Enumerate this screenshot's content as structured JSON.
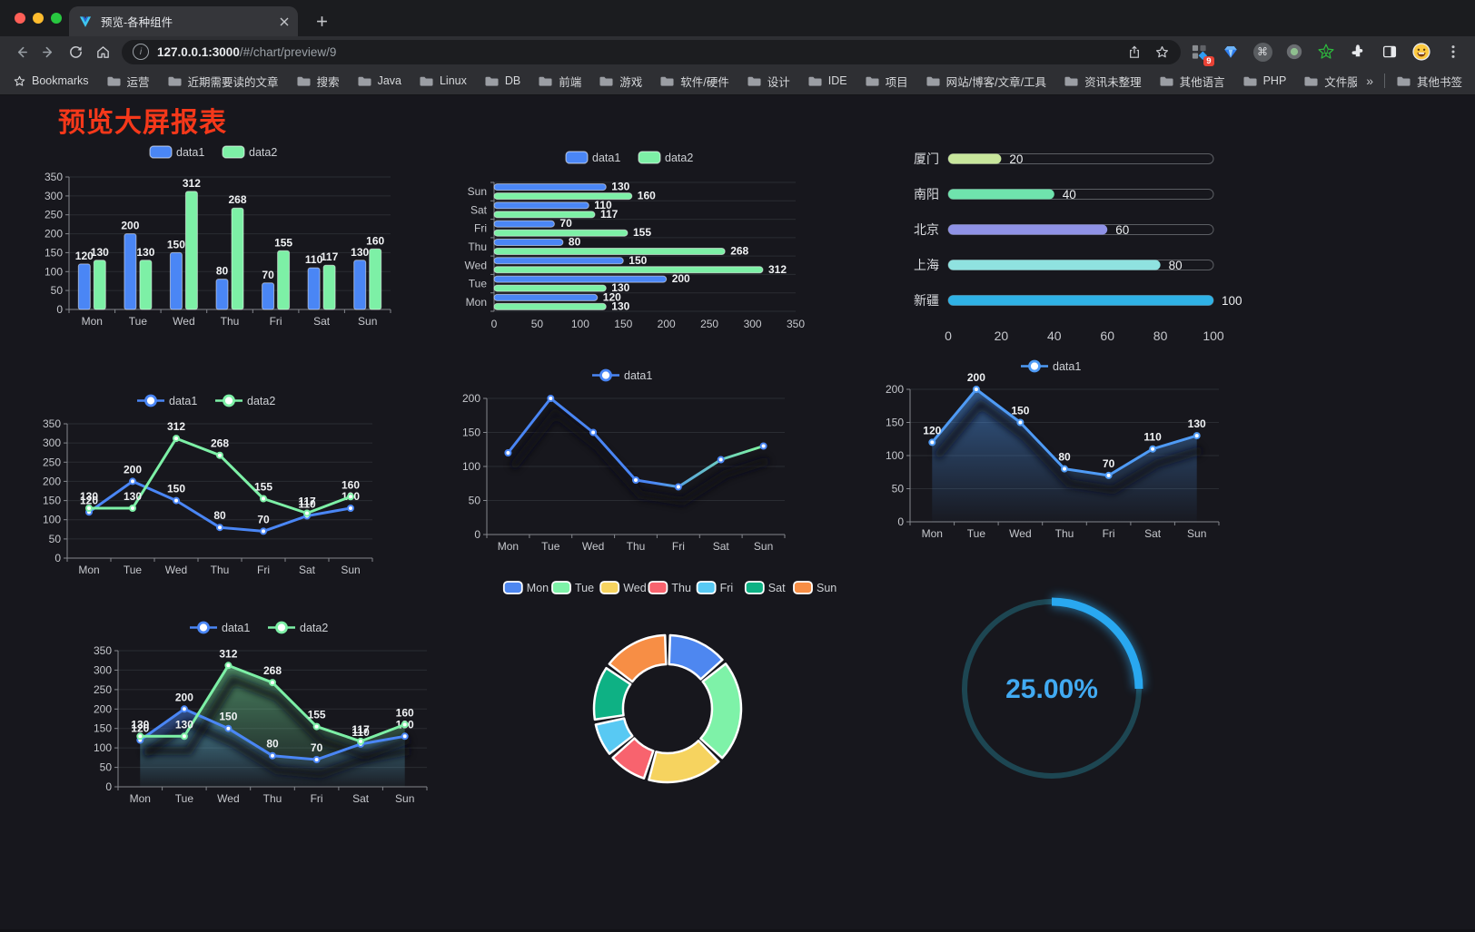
{
  "browser": {
    "tab_title": "预览-各种组件",
    "url_host": "127.0.0.1:3000",
    "url_path": "/#/chart/preview/9",
    "ext_badge": "9",
    "bookmarks_label": "Bookmarks",
    "bookmarks": [
      "运营",
      "近期需要读的文章",
      "搜索",
      "Java",
      "Linux",
      "DB",
      "前端",
      "游戏",
      "软件/硬件",
      "设计",
      "IDE",
      "项目",
      "网站/博客/文章/工具",
      "资讯未整理",
      "其他语言",
      "PHP",
      "文件服务器"
    ],
    "other_bookmarks": "其他书签",
    "icons": {
      "overflow": "»",
      "command": "⌘",
      "info": "i"
    },
    "traffic_lights": [
      "#ff5f57",
      "#febc2e",
      "#28c840"
    ]
  },
  "page": {
    "title": "预览大屏报表",
    "title_color": "#f5381a",
    "background": "#17171d"
  },
  "chart_data": [
    {
      "id": "bar-grouped",
      "type": "bar",
      "categories": [
        "Mon",
        "Tue",
        "Wed",
        "Thu",
        "Fri",
        "Sat",
        "Sun"
      ],
      "series": [
        {
          "name": "data1",
          "color": "#4a86f5",
          "values": [
            120,
            200,
            150,
            80,
            70,
            110,
            130
          ]
        },
        {
          "name": "data2",
          "color": "#7df0a6",
          "values": [
            130,
            130,
            312,
            268,
            155,
            117,
            160
          ]
        }
      ],
      "ylim": [
        0,
        350
      ],
      "ytick_step": 50,
      "value_labels": true,
      "legend_position": "top",
      "grid": true
    },
    {
      "id": "bar-horizontal",
      "type": "hbar",
      "categories": [
        "Mon",
        "Tue",
        "Wed",
        "Thu",
        "Fri",
        "Sat",
        "Sun"
      ],
      "series": [
        {
          "name": "data1",
          "color": "#4a86f5",
          "values": [
            120,
            200,
            150,
            80,
            70,
            110,
            130
          ]
        },
        {
          "name": "data2",
          "color": "#7df0a6",
          "values": [
            130,
            130,
            312,
            268,
            155,
            117,
            160
          ]
        }
      ],
      "xlim": [
        0,
        350
      ],
      "xtick_step": 50,
      "value_labels": true,
      "legend_position": "top",
      "grid": true
    },
    {
      "id": "progress-cities",
      "type": "progress",
      "items": [
        {
          "label": "厦门",
          "value": 20,
          "color": "#c8e69c"
        },
        {
          "label": "南阳",
          "value": 40,
          "color": "#6fe3ad"
        },
        {
          "label": "北京",
          "value": 60,
          "color": "#8f92e6"
        },
        {
          "label": "上海",
          "value": 80,
          "color": "#8fe2e0"
        },
        {
          "label": "新疆",
          "value": 100,
          "color": "#2fb2e6"
        }
      ],
      "xlim": [
        0,
        100
      ],
      "xticks": [
        0,
        20,
        40,
        60,
        80,
        100
      ]
    },
    {
      "id": "line-two-series",
      "type": "line",
      "categories": [
        "Mon",
        "Tue",
        "Wed",
        "Thu",
        "Fri",
        "Sat",
        "Sun"
      ],
      "series": [
        {
          "name": "data1",
          "color": "#4a86f5",
          "values": [
            120,
            200,
            150,
            80,
            70,
            110,
            130
          ]
        },
        {
          "name": "data2",
          "color": "#7df0a6",
          "values": [
            130,
            130,
            312,
            268,
            155,
            117,
            160
          ]
        }
      ],
      "ylim": [
        0,
        350
      ],
      "ytick_step": 50,
      "value_labels": true,
      "legend_position": "top",
      "grid": true
    },
    {
      "id": "line-gradient",
      "type": "line",
      "categories": [
        "Mon",
        "Tue",
        "Wed",
        "Thu",
        "Fri",
        "Sat",
        "Sun"
      ],
      "series": [
        {
          "name": "data1",
          "color": "#4a86f5",
          "stroke_gradient": [
            "#4a86f5",
            "#7df0a6"
          ],
          "values": [
            120,
            200,
            150,
            80,
            70,
            110,
            130
          ]
        }
      ],
      "ylim": [
        0,
        200
      ],
      "ytick_step": 50,
      "value_labels": false,
      "shadow": true,
      "legend_position": "top",
      "grid": true
    },
    {
      "id": "line-area-single",
      "type": "line",
      "categories": [
        "Mon",
        "Tue",
        "Wed",
        "Thu",
        "Fri",
        "Sat",
        "Sun"
      ],
      "series": [
        {
          "name": "data1",
          "color": "#4f9bf5",
          "area": true,
          "values": [
            120,
            200,
            150,
            80,
            70,
            110,
            130
          ]
        }
      ],
      "ylim": [
        0,
        200
      ],
      "ytick_step": 50,
      "value_labels": true,
      "shadow": true,
      "legend_position": "top",
      "grid": true
    },
    {
      "id": "line-area-two",
      "type": "line",
      "categories": [
        "Mon",
        "Tue",
        "Wed",
        "Thu",
        "Fri",
        "Sat",
        "Sun"
      ],
      "series": [
        {
          "name": "data1",
          "color": "#4a86f5",
          "area": true,
          "values": [
            120,
            200,
            150,
            80,
            70,
            110,
            130
          ]
        },
        {
          "name": "data2",
          "color": "#7df0a6",
          "area": true,
          "values": [
            130,
            130,
            312,
            268,
            155,
            117,
            160
          ]
        }
      ],
      "ylim": [
        0,
        350
      ],
      "ytick_step": 50,
      "value_labels": true,
      "shadow": true,
      "legend_position": "top",
      "grid": true
    },
    {
      "id": "donut-week",
      "type": "donut",
      "categories": [
        "Mon",
        "Tue",
        "Wed",
        "Thu",
        "Fri",
        "Sat",
        "Sun"
      ],
      "values": [
        120,
        200,
        150,
        80,
        70,
        110,
        130
      ],
      "colors": [
        "#4e87f0",
        "#7ef2a8",
        "#f6d35f",
        "#f8636e",
        "#58c9f3",
        "#0eb184",
        "#f78e45"
      ],
      "legend_position": "top"
    },
    {
      "id": "gauge-percent",
      "type": "gauge",
      "value": 25,
      "max": 100,
      "label": "25.00%",
      "color": "#29a8f0",
      "track_color": "#1d4652"
    }
  ]
}
